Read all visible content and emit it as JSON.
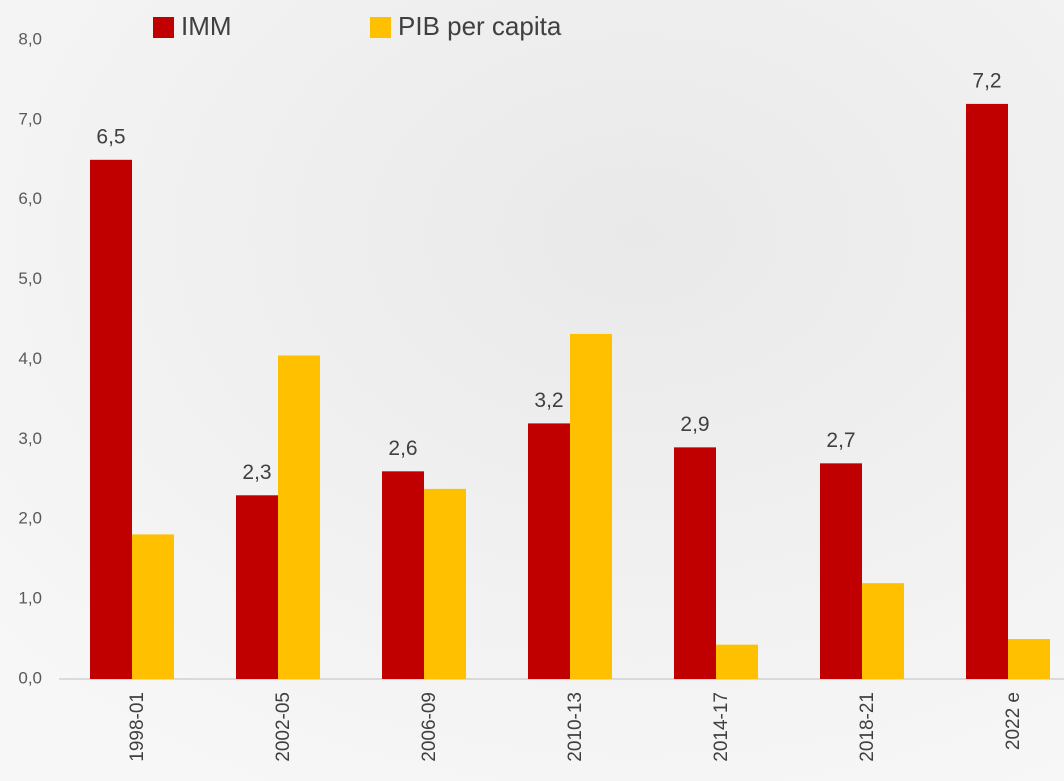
{
  "chart_data": {
    "type": "bar",
    "categories": [
      "1998-01",
      "2002-05",
      "2006-09",
      "2010-13",
      "2014-17",
      "2018-21",
      "2022 e"
    ],
    "series": [
      {
        "name": "IMM",
        "color": "#c00000",
        "values": [
          6.5,
          2.3,
          2.6,
          3.2,
          2.9,
          2.7,
          7.2
        ],
        "value_labels": [
          "6,5",
          "2,3",
          "2,6",
          "3,2",
          "2,9",
          "2,7",
          "7,2"
        ]
      },
      {
        "name": "PIB per capita",
        "color": "#ffc000",
        "values": [
          1.81,
          4.05,
          2.38,
          4.32,
          0.43,
          1.2,
          0.5
        ]
      }
    ],
    "ylim": [
      0,
      8
    ],
    "yticks": [
      {
        "value": 0,
        "label": "0,0"
      },
      {
        "value": 1,
        "label": "1,0"
      },
      {
        "value": 2,
        "label": "2,0"
      },
      {
        "value": 3,
        "label": "3,0"
      },
      {
        "value": 4,
        "label": "4,0"
      },
      {
        "value": 5,
        "label": "5,0"
      },
      {
        "value": 6,
        "label": "6,0"
      },
      {
        "value": 7,
        "label": "7,0"
      },
      {
        "value": 8,
        "label": "8,0"
      }
    ],
    "legend": "top"
  }
}
